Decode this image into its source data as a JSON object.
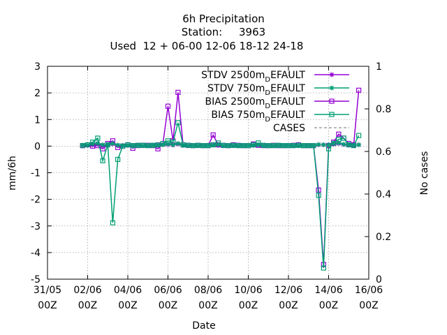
{
  "chart_data": {
    "type": "line",
    "title": [
      "6h Precipitation",
      "Station:     3963",
      "Used  12 + 06-00 12-06 18-12 24-18"
    ],
    "xlabel": "Date",
    "ylabel": "mm/6h",
    "y2label": "No cases",
    "xlim": [
      "31/05 00Z",
      "16/06 00Z"
    ],
    "ylim": [
      -5,
      3
    ],
    "y2lim": [
      0,
      1
    ],
    "xticks": [
      {
        "line1": "31/05",
        "line2": "00Z",
        "day": 0
      },
      {
        "line1": "02/06",
        "line2": "00Z",
        "day": 2
      },
      {
        "line1": "04/06",
        "line2": "00Z",
        "day": 4
      },
      {
        "line1": "06/06",
        "line2": "00Z",
        "day": 6
      },
      {
        "line1": "08/06",
        "line2": "00Z",
        "day": 8
      },
      {
        "line1": "10/06",
        "line2": "00Z",
        "day": 10
      },
      {
        "line1": "12/06",
        "line2": "00Z",
        "day": 12
      },
      {
        "line1": "14/06",
        "line2": "00Z",
        "day": 14
      },
      {
        "line1": "16/06",
        "line2": "00Z",
        "day": 16
      }
    ],
    "yticks": [
      "3",
      "2",
      "1",
      "0",
      "-1",
      "-2",
      "-3",
      "-4",
      "-5"
    ],
    "y2ticks": [
      "1",
      "0.8",
      "0.6",
      "0.4",
      "0.2",
      "0"
    ],
    "grid": true,
    "legend_position": "top-right",
    "legend": [
      {
        "main": "STDV 2500m",
        "sub": "D",
        "rest": "EFAULT",
        "color": "#9400d3",
        "marker": "star"
      },
      {
        "main": "STDV 750m",
        "sub": "D",
        "rest": "EFAULT",
        "color": "#009e73",
        "marker": "star"
      },
      {
        "main": "BIAS 2500m",
        "sub": "D",
        "rest": "EFAULT",
        "color": "#9400d3",
        "marker": "square"
      },
      {
        "main": "BIAS 750m",
        "sub": "D",
        "rest": "EFAULT",
        "color": "#009e73",
        "marker": "square"
      },
      {
        "main": "CASES",
        "sub": "",
        "rest": "",
        "color": "#a0a0a0",
        "marker": "dash"
      }
    ],
    "series": [
      {
        "key": "bias_2500",
        "color": "#9400d3",
        "marker": "square",
        "x": [
          1.75,
          2.25,
          2.5,
          2.75,
          3.0,
          3.25,
          3.5,
          3.75,
          4.0,
          4.25,
          4.5,
          4.75,
          5.0,
          5.25,
          5.5,
          5.75,
          6.0,
          6.25,
          6.5,
          6.75,
          7.0,
          7.25,
          7.5,
          7.75,
          8.0,
          8.25,
          8.5,
          8.75,
          9.0,
          9.25,
          9.5,
          9.75,
          10.0,
          10.25,
          10.5,
          10.75,
          11.0,
          11.25,
          11.5,
          11.75,
          12.0,
          12.25,
          12.5,
          12.75,
          13.0,
          13.25,
          13.5,
          13.75,
          14.0,
          14.25,
          14.5,
          14.75,
          15.0,
          15.25,
          15.5
        ],
        "y": [
          0.02,
          0.0,
          0.02,
          -0.1,
          0.1,
          0.2,
          -0.05,
          0.0,
          0.05,
          -0.08,
          0.02,
          0.03,
          0.03,
          0.02,
          -0.1,
          0.1,
          1.5,
          0.2,
          2.02,
          0.05,
          0.03,
          0.02,
          0.03,
          0.02,
          0.02,
          0.42,
          0.05,
          0.03,
          0.02,
          0.05,
          0.03,
          0.02,
          0.02,
          0.08,
          0.03,
          0.02,
          0.02,
          0.03,
          0.02,
          0.02,
          0.02,
          0.03,
          0.05,
          0.02,
          0.02,
          0.02,
          -1.65,
          -4.45,
          0.02,
          0.15,
          0.45,
          0.3,
          0.1,
          0.05,
          2.1
        ]
      },
      {
        "key": "bias_750",
        "color": "#009e73",
        "marker": "square",
        "x": [
          1.75,
          2.0,
          2.25,
          2.5,
          2.75,
          3.0,
          3.25,
          3.5,
          3.75,
          4.0,
          4.25,
          4.5,
          4.75,
          5.0,
          5.25,
          5.5,
          5.75,
          6.0,
          6.25,
          6.5,
          6.75,
          7.0,
          7.25,
          7.5,
          7.75,
          8.0,
          8.25,
          8.5,
          8.75,
          9.0,
          9.25,
          9.5,
          9.75,
          10.0,
          10.25,
          10.5,
          10.75,
          11.0,
          11.25,
          11.5,
          11.75,
          12.0,
          12.25,
          12.5,
          12.75,
          13.0,
          13.25,
          13.5,
          13.75,
          14.0,
          14.25,
          14.5,
          14.75,
          15.0,
          15.25,
          15.5
        ],
        "y": [
          0.02,
          0.05,
          0.15,
          0.3,
          -0.55,
          0.05,
          -2.88,
          -0.5,
          0.0,
          0.05,
          0.02,
          0.03,
          0.03,
          0.02,
          0.03,
          0.05,
          0.1,
          0.2,
          0.15,
          0.88,
          0.05,
          0.03,
          0.02,
          0.03,
          0.02,
          0.02,
          0.05,
          0.12,
          0.03,
          0.02,
          0.03,
          0.02,
          0.02,
          0.02,
          0.05,
          0.12,
          0.03,
          0.02,
          0.02,
          0.03,
          0.02,
          0.02,
          0.02,
          0.03,
          0.02,
          0.02,
          0.02,
          -1.85,
          -4.58,
          -0.1,
          0.1,
          0.25,
          0.3,
          0.05,
          0.02,
          0.4
        ]
      },
      {
        "key": "stdv_2500",
        "color": "#9400d3",
        "marker": "star",
        "x": [
          1.75,
          2.0,
          2.25,
          2.5,
          2.75,
          3.0,
          3.25,
          3.5,
          3.75,
          4.0,
          4.25,
          4.5,
          4.75,
          5.0,
          5.25,
          5.5,
          5.75,
          6.0,
          6.25,
          6.5,
          6.75,
          7.0,
          7.25,
          7.5,
          7.75,
          8.0,
          8.25,
          8.5,
          8.75,
          9.0,
          9.25,
          9.5,
          9.75,
          10.0,
          10.25,
          10.5,
          10.75,
          11.0,
          11.25,
          11.5,
          11.75,
          12.0,
          12.25,
          12.5,
          12.75,
          13.0,
          13.25,
          13.5,
          13.75,
          14.0,
          14.25,
          14.5,
          14.75,
          15.0,
          15.25,
          15.5
        ],
        "y": [
          0.02,
          0.03,
          0.05,
          0.08,
          0.03,
          0.05,
          0.08,
          0.03,
          0.02,
          0.03,
          0.02,
          0.03,
          0.02,
          0.02,
          0.03,
          0.05,
          0.05,
          0.06,
          0.04,
          0.08,
          0.03,
          0.02,
          0.02,
          0.02,
          0.02,
          0.02,
          0.05,
          0.03,
          0.02,
          0.02,
          0.02,
          0.02,
          0.02,
          0.02,
          0.03,
          0.03,
          0.02,
          0.02,
          0.02,
          0.02,
          0.02,
          0.02,
          0.02,
          0.02,
          0.02,
          0.02,
          0.02,
          0.05,
          0.05,
          0.05,
          0.08,
          0.1,
          0.06,
          0.04,
          0.03,
          0.05
        ]
      },
      {
        "key": "stdv_750",
        "color": "#009e73",
        "marker": "star",
        "x": [
          1.75,
          2.0,
          2.25,
          2.5,
          2.75,
          3.0,
          3.25,
          3.5,
          3.75,
          4.0,
          4.25,
          4.5,
          4.75,
          5.0,
          5.25,
          5.5,
          5.75,
          6.0,
          6.25,
          6.5,
          6.75,
          7.0,
          7.25,
          7.5,
          7.75,
          8.0,
          8.25,
          8.5,
          8.75,
          9.0,
          9.25,
          9.5,
          9.75,
          10.0,
          10.25,
          10.5,
          10.75,
          11.0,
          11.25,
          11.5,
          11.75,
          12.0,
          12.25,
          12.5,
          12.75,
          13.0,
          13.25,
          13.5,
          13.75,
          14.0,
          14.25,
          14.5,
          14.75,
          15.0,
          15.25,
          15.5
        ],
        "y": [
          0.03,
          0.04,
          0.08,
          0.1,
          0.05,
          0.05,
          0.1,
          0.04,
          0.02,
          0.03,
          0.02,
          0.03,
          0.02,
          0.02,
          0.03,
          0.04,
          0.05,
          0.08,
          0.05,
          0.1,
          0.03,
          0.02,
          0.02,
          0.02,
          0.02,
          0.02,
          0.04,
          0.05,
          0.02,
          0.02,
          0.02,
          0.02,
          0.02,
          0.02,
          0.03,
          0.04,
          0.02,
          0.02,
          0.02,
          0.02,
          0.02,
          0.02,
          0.02,
          0.02,
          0.02,
          0.02,
          0.02,
          0.06,
          0.05,
          0.05,
          0.1,
          0.12,
          0.07,
          0.05,
          0.03,
          0.05
        ]
      }
    ]
  }
}
